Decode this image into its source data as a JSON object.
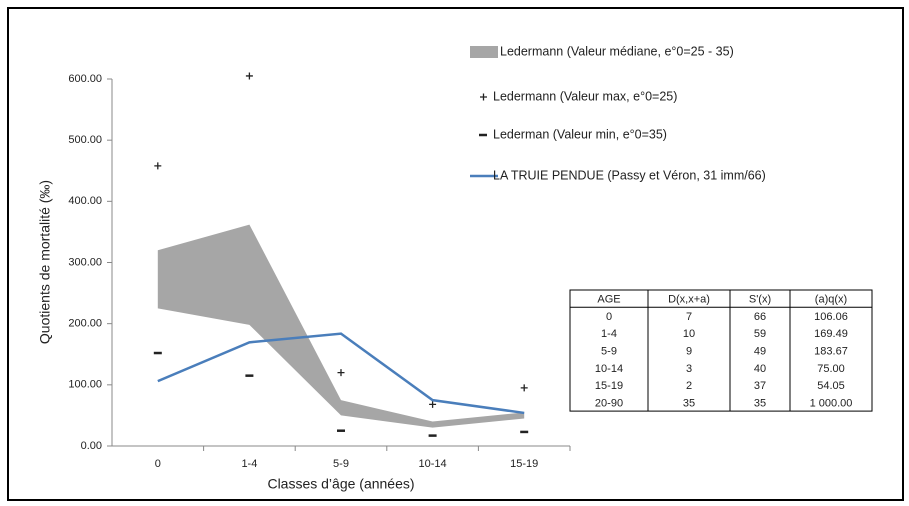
{
  "chart_data": {
    "type": "line",
    "categories": [
      "0",
      "1-4",
      "5-9",
      "10-14",
      "15-19"
    ],
    "xlabel": "Classes d’âge (années)",
    "ylabel": "Quotients de mortalité (‰)",
    "ylim": [
      0,
      600
    ],
    "yticks": [
      {
        "value": 0,
        "label": "0.00"
      },
      {
        "value": 100,
        "label": "100.00"
      },
      {
        "value": 200,
        "label": "200.00"
      },
      {
        "value": 300,
        "label": "300.00"
      },
      {
        "value": 400,
        "label": "400.00"
      },
      {
        "value": 500,
        "label": "500.00"
      },
      {
        "value": 600,
        "label": "600.00"
      }
    ],
    "grid": false,
    "series": [
      {
        "name": "Ledermann (Valeur médiane, e°0=25 - 35)",
        "type": "band",
        "color": "#a6a6a6",
        "high": [
          320,
          362,
          75,
          40,
          55
        ],
        "low": [
          225,
          198,
          50,
          30,
          45
        ]
      },
      {
        "name": "Ledermann (Valeur max, e°0=25)",
        "type": "plus",
        "color": "#222222",
        "values": [
          458,
          605,
          120,
          68,
          95
        ]
      },
      {
        "name": "Lederman (Valeur min, e°0=35)",
        "type": "minus",
        "color": "#222222",
        "values": [
          152,
          115,
          25,
          17,
          23
        ]
      },
      {
        "name": "LA TRUIE PENDUE (Passy et Véron, 31 imm/66)",
        "type": "line",
        "color": "#4a7ebb",
        "values": [
          106.06,
          169.49,
          183.67,
          75.0,
          54.05
        ]
      }
    ]
  },
  "table": {
    "header": [
      "AGE",
      "D(x,x+a)",
      "S'(x)",
      "(a)q(x)"
    ],
    "rows": [
      [
        "0",
        "7",
        "66",
        "106.06"
      ],
      [
        "1-4",
        "10",
        "59",
        "169.49"
      ],
      [
        "5-9",
        "9",
        "49",
        "183.67"
      ],
      [
        "10-14",
        "3",
        "40",
        "75.00"
      ],
      [
        "15-19",
        "2",
        "37",
        "54.05"
      ],
      [
        "20-90",
        "35",
        "35",
        "1 000.00"
      ]
    ]
  }
}
